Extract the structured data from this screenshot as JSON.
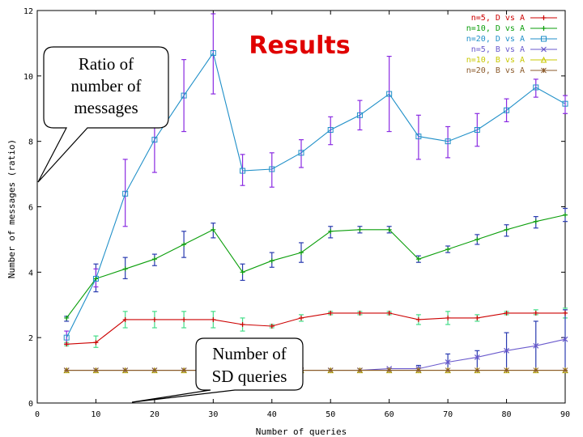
{
  "chart_data": {
    "type": "line",
    "title": "Results",
    "xlabel": "Number of queries",
    "ylabel": "Number of messages (ratio)",
    "xlim": [
      0,
      90
    ],
    "ylim": [
      0,
      12
    ],
    "x_ticks": [
      "0",
      "10",
      "20",
      "30",
      "40",
      "50",
      "60",
      "70",
      "80",
      "90"
    ],
    "y_ticks": [
      "0",
      "2",
      "4",
      "6",
      "8",
      "10",
      "12"
    ],
    "legend_position": "top-right",
    "x": [
      5,
      10,
      15,
      20,
      25,
      30,
      35,
      40,
      45,
      50,
      55,
      60,
      65,
      70,
      75,
      80,
      85,
      90
    ],
    "series": [
      {
        "name": "n=5, D vs A",
        "color": "#cc0000",
        "marker": "plus",
        "values": [
          1.8,
          1.85,
          2.55,
          2.55,
          2.55,
          2.55,
          2.4,
          2.35,
          2.6,
          2.75,
          2.75,
          2.75,
          2.55,
          2.6,
          2.6,
          2.75,
          2.75,
          2.75
        ]
      },
      {
        "name": "n=10, D vs A",
        "color": "#0a9e0a",
        "marker": "plus",
        "values": [
          2.6,
          3.8,
          4.1,
          4.4,
          4.85,
          5.3,
          4.0,
          4.35,
          4.6,
          5.25,
          5.3,
          5.3,
          4.4,
          4.7,
          5.0,
          5.3,
          5.55,
          5.75
        ]
      },
      {
        "name": "n=20, D vs A",
        "color": "#1f8fc8",
        "marker": "square",
        "values": [
          2.0,
          3.8,
          6.4,
          8.05,
          9.4,
          10.7,
          7.1,
          7.15,
          7.65,
          8.35,
          8.8,
          9.45,
          8.15,
          8.0,
          8.35,
          8.95,
          9.65,
          9.15
        ]
      },
      {
        "name": "n=5, B vs A",
        "color": "#6a5acd",
        "marker": "cross",
        "values": [
          1.0,
          1.0,
          1.0,
          1.0,
          1.0,
          1.0,
          1.0,
          1.0,
          1.0,
          1.0,
          1.0,
          1.05,
          1.05,
          1.25,
          1.4,
          1.6,
          1.75,
          1.95
        ]
      },
      {
        "name": "n=10, B vs A",
        "color": "#c8c800",
        "marker": "triangle",
        "values": [
          1.0,
          1.0,
          1.0,
          1.0,
          1.0,
          1.0,
          1.0,
          1.0,
          1.0,
          1.0,
          1.0,
          1.0,
          1.0,
          1.0,
          1.0,
          1.0,
          1.0,
          1.0
        ]
      },
      {
        "name": "n=20, B vs A",
        "color": "#8b5a2b",
        "marker": "star",
        "values": [
          1.0,
          1.0,
          1.0,
          1.0,
          1.0,
          1.0,
          1.0,
          1.0,
          1.0,
          1.0,
          1.0,
          1.0,
          1.0,
          1.0,
          1.0,
          1.0,
          1.0,
          1.0
        ]
      }
    ],
    "error_bars": [
      {
        "series": "n=5, D vs A",
        "color": "#44dd88",
        "low": [
          1.75,
          1.7,
          2.3,
          2.3,
          2.3,
          2.3,
          2.2,
          2.3,
          2.5,
          2.7,
          2.7,
          2.7,
          2.4,
          2.4,
          2.5,
          2.7,
          2.7,
          2.6
        ],
        "high": [
          1.85,
          2.05,
          2.8,
          2.8,
          2.8,
          2.8,
          2.6,
          2.4,
          2.7,
          2.8,
          2.8,
          2.8,
          2.7,
          2.8,
          2.7,
          2.8,
          2.85,
          2.9
        ]
      },
      {
        "series": "n=10, D vs A",
        "color": "#2a3bb0",
        "low": [
          2.5,
          3.4,
          3.8,
          4.2,
          4.45,
          5.05,
          3.75,
          4.15,
          4.3,
          5.05,
          5.2,
          5.2,
          4.3,
          4.6,
          4.85,
          5.1,
          5.35,
          5.55
        ],
        "high": [
          2.65,
          4.25,
          4.45,
          4.55,
          5.25,
          5.5,
          4.25,
          4.6,
          4.9,
          5.4,
          5.4,
          5.4,
          4.5,
          4.8,
          5.15,
          5.45,
          5.7,
          5.95
        ]
      },
      {
        "series": "n=20, D vs A",
        "color": "#8a2be2",
        "low": [
          1.8,
          3.55,
          5.4,
          7.05,
          8.3,
          9.45,
          6.65,
          6.6,
          7.2,
          7.9,
          8.35,
          8.3,
          7.45,
          7.5,
          7.85,
          8.6,
          9.35,
          8.85
        ],
        "high": [
          2.2,
          4.1,
          7.45,
          8.95,
          10.5,
          11.9,
          7.6,
          7.65,
          8.05,
          8.75,
          9.25,
          10.6,
          8.8,
          8.45,
          8.85,
          9.3,
          9.9,
          9.4
        ]
      },
      {
        "series": "n=5, B vs A",
        "color": "#2a3bb0",
        "low": [
          1.0,
          1.0,
          1.0,
          1.0,
          1.0,
          1.0,
          1.0,
          1.0,
          1.0,
          1.0,
          1.0,
          1.0,
          1.0,
          1.0,
          1.0,
          1.0,
          1.0,
          1.0
        ],
        "high": [
          1.0,
          1.0,
          1.0,
          1.0,
          1.0,
          1.0,
          1.0,
          1.0,
          1.0,
          1.0,
          1.0,
          1.0,
          1.15,
          1.5,
          1.6,
          2.15,
          2.5,
          2.85
        ]
      }
    ]
  },
  "callouts": {
    "ratio": [
      "Ratio of",
      "number of",
      "messages"
    ],
    "queries": [
      "Number of",
      "SD queries"
    ]
  }
}
